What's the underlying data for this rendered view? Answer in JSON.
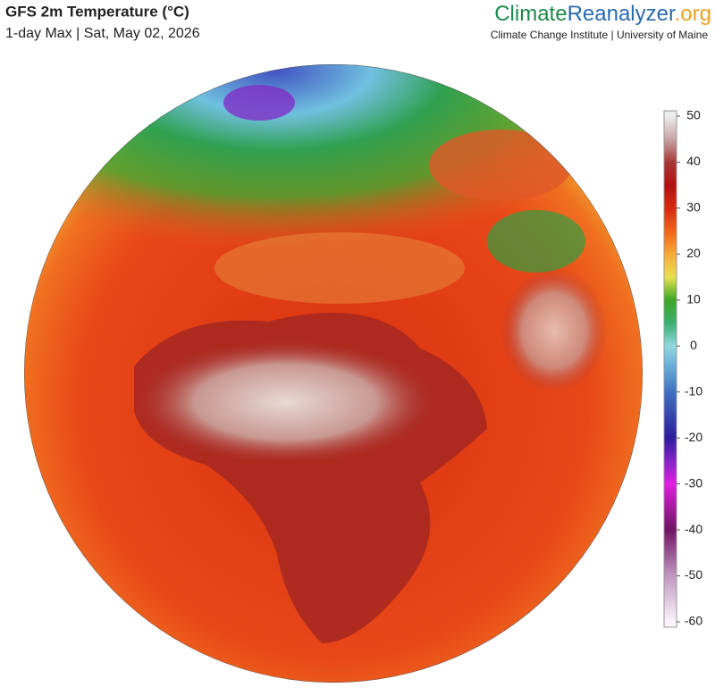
{
  "header": {
    "title": "GFS 2m Temperature (°C)",
    "subtitle": "1-day Max | Sat, May 02, 2026"
  },
  "brand": {
    "name_first": "Climate",
    "name_second": "Reanalyzer",
    "suffix": ".org",
    "affiliation": "Climate Change Institute | University of Maine"
  },
  "colorbar": {
    "range": [
      -60,
      50
    ],
    "ticks": [
      50,
      40,
      30,
      20,
      10,
      0,
      -10,
      -20,
      -30,
      -40,
      -50,
      -60
    ],
    "stops": [
      {
        "value": 50,
        "color": "#ececec"
      },
      {
        "value": 45,
        "color": "#c8a4a4"
      },
      {
        "value": 40,
        "color": "#a83838"
      },
      {
        "value": 35,
        "color": "#b41010"
      },
      {
        "value": 30,
        "color": "#d82810"
      },
      {
        "value": 25,
        "color": "#f06418"
      },
      {
        "value": 20,
        "color": "#f8a838"
      },
      {
        "value": 15,
        "color": "#e8e050"
      },
      {
        "value": 10,
        "color": "#3ca824"
      },
      {
        "value": 5,
        "color": "#38b070"
      },
      {
        "value": 0,
        "color": "#90d8e0"
      },
      {
        "value": -5,
        "color": "#64a8d8"
      },
      {
        "value": -10,
        "color": "#4070c0"
      },
      {
        "value": -20,
        "color": "#2c1c9c"
      },
      {
        "value": -25,
        "color": "#8424c8"
      },
      {
        "value": -30,
        "color": "#e020e0"
      },
      {
        "value": -40,
        "color": "#701464"
      },
      {
        "value": -50,
        "color": "#c098c0"
      },
      {
        "value": -60,
        "color": "#faf4fa"
      }
    ]
  }
}
